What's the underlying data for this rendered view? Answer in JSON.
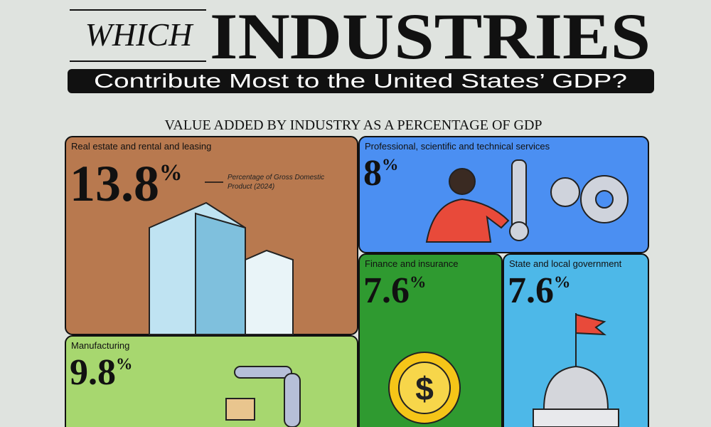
{
  "header": {
    "title_prefix": "WHICH",
    "title": "INDUSTRIES",
    "subtitle": "Contribute Most to the United States’ GDP?"
  },
  "chart_data": {
    "type": "treemap",
    "title": "VALUE ADDED BY INDUSTRY AS A PERCENTAGE OF GDP",
    "annotation": "Percentage of Gross Domestic Product (2024)",
    "categories": [
      "Real estate and rental and leasing",
      "Professional, scientific and technical services",
      "Finance and insurance",
      "State and local government",
      "Manufacturing"
    ],
    "values": [
      13.8,
      8,
      7.6,
      7.6,
      9.8
    ],
    "value_labels": [
      "13.8%",
      "8%",
      "7.6%",
      "7.6%",
      "9.8%"
    ],
    "colors": [
      "#b8794f",
      "#4b8ff2",
      "#2f9a30",
      "#4db8e8",
      "#a7d76f"
    ]
  }
}
